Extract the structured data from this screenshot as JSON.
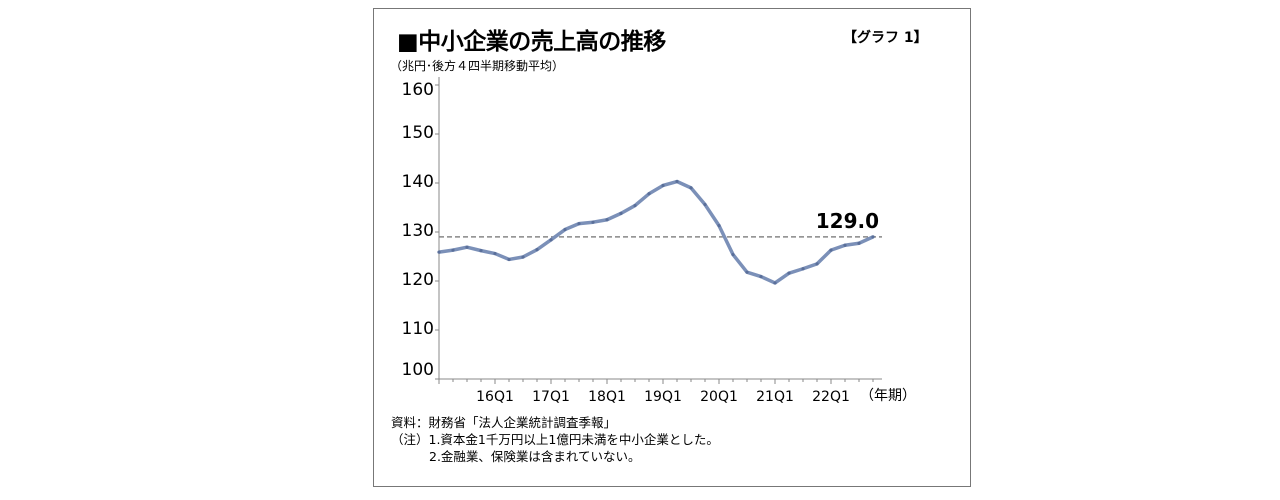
{
  "header": {
    "title": "■中小企業の売上高の推移",
    "graph_tag": "【グラフ 1】",
    "unit_note": "（兆円･後方４四半期移動平均）"
  },
  "footer": {
    "source": "資料：財務省「法人企業統計調査季報」",
    "note1": "（注）1.資本金1千万円以上1億円未満を中小企業とした。",
    "note2": "2.金融業、保険業は含まれていない。"
  },
  "chart_data": {
    "type": "line",
    "title": "中小企業の売上高の推移",
    "xlabel": "（年期）",
    "ylabel": "兆円",
    "ylim": [
      100,
      160
    ],
    "yticks": [
      100,
      110,
      120,
      130,
      140,
      150,
      160
    ],
    "x": [
      "15Q1",
      "15Q2",
      "15Q3",
      "15Q4",
      "16Q1",
      "16Q2",
      "16Q3",
      "16Q4",
      "17Q1",
      "17Q2",
      "17Q3",
      "17Q4",
      "18Q1",
      "18Q2",
      "18Q3",
      "18Q4",
      "19Q1",
      "19Q2",
      "19Q3",
      "19Q4",
      "20Q1",
      "20Q2",
      "20Q3",
      "20Q4",
      "21Q1",
      "21Q2",
      "21Q3",
      "21Q4",
      "22Q1",
      "22Q2",
      "22Q3",
      "22Q4"
    ],
    "xtick_labels": [
      "16Q1",
      "17Q1",
      "18Q1",
      "19Q1",
      "20Q1",
      "21Q1",
      "22Q1"
    ],
    "series": [
      {
        "name": "売上高",
        "color": "#7b90b8",
        "values": [
          125.9,
          126.3,
          126.9,
          126.2,
          125.6,
          124.4,
          124.9,
          126.4,
          128.4,
          130.5,
          131.7,
          132.0,
          132.5,
          133.8,
          135.4,
          137.8,
          139.5,
          140.3,
          139.0,
          135.6,
          131.3,
          125.4,
          121.8,
          120.9,
          119.6,
          121.6,
          122.5,
          123.5,
          126.3,
          127.3,
          127.7,
          129.0
        ]
      }
    ],
    "reference_line": {
      "value": 129.0,
      "label": "129.0",
      "style": "dashed",
      "color": "#888888"
    },
    "grid": false
  }
}
